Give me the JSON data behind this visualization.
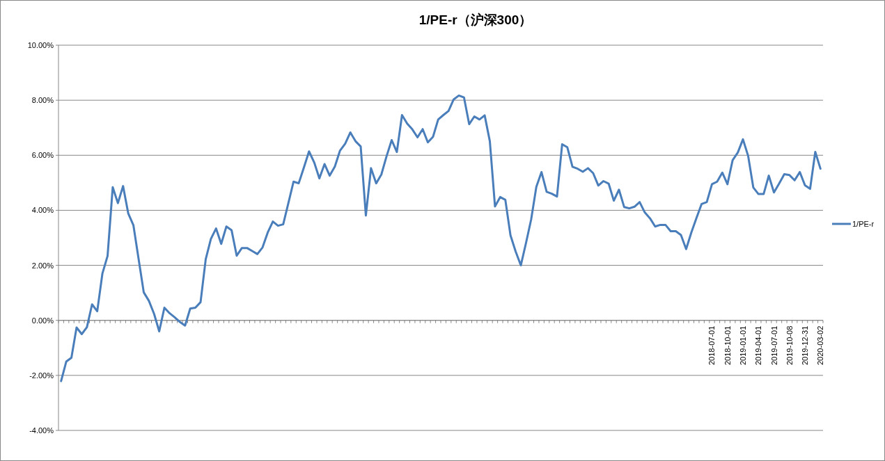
{
  "chart_data": {
    "type": "line",
    "title": "1/PE-r（沪深300）",
    "categories": [
      null,
      null,
      null,
      null,
      null,
      null,
      null,
      null,
      null,
      null,
      null,
      null,
      null,
      null,
      null,
      null,
      null,
      null,
      null,
      null,
      null,
      null,
      null,
      null,
      null,
      null,
      null,
      null,
      null,
      null,
      null,
      null,
      null,
      null,
      null,
      null,
      null,
      null,
      null,
      null,
      null,
      null,
      null,
      null,
      null,
      null,
      null,
      null,
      null,
      null,
      null,
      null,
      null,
      null,
      null,
      null,
      null,
      null,
      null,
      null,
      null,
      null,
      null,
      null,
      null,
      null,
      null,
      null,
      null,
      null,
      null,
      null,
      null,
      null,
      null,
      null,
      null,
      null,
      null,
      null,
      null,
      null,
      null,
      null,
      null,
      null,
      null,
      null,
      null,
      null,
      null,
      null,
      null,
      null,
      null,
      null,
      null,
      null,
      null,
      null,
      null,
      null,
      null,
      null,
      null,
      null,
      null,
      null,
      null,
      null,
      null,
      null,
      null,
      null,
      null,
      null,
      null,
      null,
      null,
      null,
      null,
      null,
      null,
      null,
      null,
      null,
      "2018-07-01",
      null,
      null,
      "2018-10-01",
      null,
      null,
      "2019-01-01",
      null,
      null,
      "2019-04-01",
      null,
      null,
      "2019-07-01",
      null,
      null,
      "2019-10-08",
      null,
      null,
      "2019-12-31",
      null,
      null,
      "2020-03-02"
    ],
    "series": [
      {
        "name": "1/PE-r",
        "color": "#4a7ebb",
        "values": [
          -2.21,
          -1.5,
          -1.36,
          -0.26,
          -0.5,
          -0.25,
          0.58,
          0.33,
          1.7,
          2.34,
          4.84,
          4.26,
          4.88,
          3.89,
          3.46,
          2.24,
          1.02,
          0.71,
          0.24,
          -0.4,
          0.46,
          0.26,
          0.11,
          -0.06,
          -0.19,
          0.43,
          0.46,
          0.66,
          2.22,
          2.96,
          3.34,
          2.78,
          3.41,
          3.28,
          2.35,
          2.63,
          2.63,
          2.52,
          2.41,
          2.65,
          3.19,
          3.59,
          3.44,
          3.49,
          4.26,
          5.04,
          4.98,
          5.55,
          6.14,
          5.74,
          5.16,
          5.68,
          5.26,
          5.59,
          6.17,
          6.42,
          6.83,
          6.51,
          6.32,
          3.81,
          5.53,
          4.98,
          5.3,
          5.96,
          6.55,
          6.12,
          7.46,
          7.15,
          6.94,
          6.65,
          6.95,
          6.47,
          6.67,
          7.3,
          7.46,
          7.61,
          8.03,
          8.17,
          8.1,
          7.13,
          7.41,
          7.3,
          7.45,
          6.51,
          4.14,
          4.48,
          4.38,
          3.09,
          2.5,
          2.0,
          2.81,
          3.67,
          4.85,
          5.39,
          4.67,
          4.6,
          4.5,
          6.4,
          6.29,
          5.58,
          5.51,
          5.4,
          5.53,
          5.35,
          4.9,
          5.06,
          4.97,
          4.35,
          4.75,
          4.12,
          4.07,
          4.13,
          4.3,
          3.92,
          3.71,
          3.41,
          3.47,
          3.47,
          3.24,
          3.24,
          3.1,
          2.59,
          3.19,
          3.72,
          4.23,
          4.3,
          4.95,
          5.04,
          5.37,
          4.95,
          5.82,
          6.1,
          6.58,
          5.98,
          4.83,
          4.59,
          4.59,
          5.26,
          4.65,
          4.97,
          5.31,
          5.28,
          5.09,
          5.39,
          4.91,
          4.78,
          6.12,
          5.51
        ]
      }
    ],
    "ylim": [
      -4,
      10
    ],
    "yticks": [
      {
        "value": -4,
        "label": "-4.00%"
      },
      {
        "value": -2,
        "label": "-2.00%"
      },
      {
        "value": 0,
        "label": "0.00%"
      },
      {
        "value": 2,
        "label": "2.00%"
      },
      {
        "value": 4,
        "label": "4.00%"
      },
      {
        "value": 6,
        "label": "6.00%"
      },
      {
        "value": 8,
        "label": "8.00%"
      },
      {
        "value": 10,
        "label": "10.00%"
      }
    ],
    "grid": "y",
    "legend": "right",
    "marker": "none",
    "line_style": "solid"
  }
}
